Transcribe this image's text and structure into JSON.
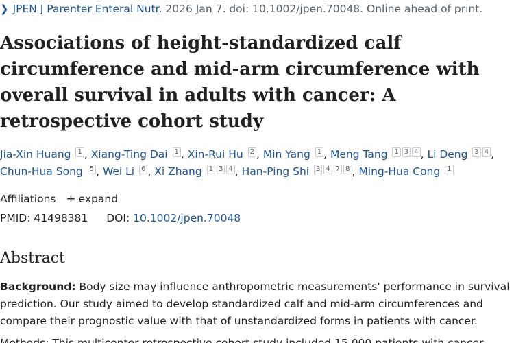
{
  "citation": {
    "chevron_icon": "chevron-right-icon",
    "journal": "JPEN J Parenter Enteral Nutr.",
    "details": "2026 Jan 7. doi: 10.1002/jpen.70048. Online ahead of print."
  },
  "title": "Associations of height‐standardized calf circumference and mid‐arm circumference with overall survival in adults with cancer: A retrospective cohort study",
  "authors": [
    {
      "name": "Jia-Xin Huang",
      "affs": [
        "1"
      ]
    },
    {
      "name": "Xiang-Ting Dai",
      "affs": [
        "1"
      ]
    },
    {
      "name": "Xin-Rui Hu",
      "affs": [
        "2"
      ]
    },
    {
      "name": "Min Yang",
      "affs": [
        "1"
      ]
    },
    {
      "name": "Meng Tang",
      "affs": [
        "1",
        "3",
        "4"
      ]
    },
    {
      "name": "Li Deng",
      "affs": [
        "3",
        "4"
      ]
    },
    {
      "name": "Chun-Hua Song",
      "affs": [
        "5"
      ]
    },
    {
      "name": "Wei Li",
      "affs": [
        "6"
      ]
    },
    {
      "name": "Xi Zhang",
      "affs": [
        "1",
        "3",
        "4"
      ]
    },
    {
      "name": "Han-Ping Shi",
      "affs": [
        "3",
        "4",
        "7",
        "8"
      ]
    },
    {
      "name": "Ming-Hua Cong",
      "affs": [
        "1"
      ]
    }
  ],
  "affiliations": {
    "label": "Affiliations",
    "expand_icon": "plus-icon",
    "expand_label": "expand"
  },
  "ids": {
    "pmid_label": "PMID:",
    "pmid": "41498381",
    "doi_label": "DOI:",
    "doi": "10.1002/jpen.70048"
  },
  "abstract": {
    "heading": "Abstract",
    "background_label": "Background:",
    "background_text": "Body size may influence anthropometric measurements' performance in survival prediction. Our study aimed to develop standardized calf and mid-arm circumferences and compare their prognostic value with that of unstandardized forms in patients with cancer.",
    "methods_partial": "Methods: This multicenter retrospective cohort study included 15,000 patients with cancer."
  }
}
